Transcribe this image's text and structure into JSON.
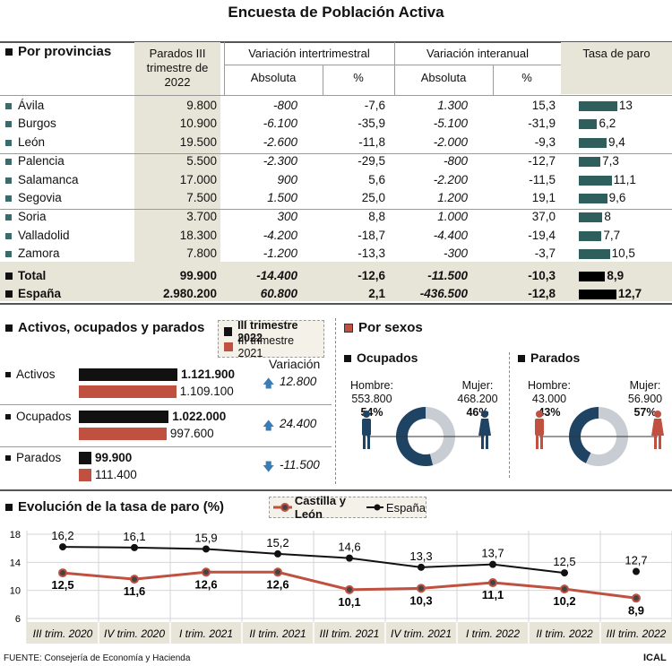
{
  "title": "Encuesta de Población Activa",
  "provincias": {
    "heading": "Por provincias",
    "headers": {
      "parados": "Parados III trimestre de 2022",
      "var_intertrimestral": "Variación intertrimestral",
      "var_interanual": "Variación interanual",
      "absoluta": "Absoluta",
      "pct": "%",
      "tasa": "Tasa de paro"
    },
    "rows": [
      {
        "name": "Ávila",
        "parados": "9.800",
        "inter_abs": "-800",
        "inter_pct": "-7,6",
        "anual_abs": "1.300",
        "anual_pct": "15,3",
        "tasa": 13,
        "tasa_label": "13"
      },
      {
        "name": "Burgos",
        "parados": "10.900",
        "inter_abs": "-6.100",
        "inter_pct": "-35,9",
        "anual_abs": "-5.100",
        "anual_pct": "-31,9",
        "tasa": 6.2,
        "tasa_label": "6,2"
      },
      {
        "name": "León",
        "parados": "19.500",
        "inter_abs": "-2.600",
        "inter_pct": "-11,8",
        "anual_abs": "-2.000",
        "anual_pct": "-9,3",
        "tasa": 9.4,
        "tasa_label": "9,4"
      },
      {
        "name": "Palencia",
        "parados": "5.500",
        "inter_abs": "-2.300",
        "inter_pct": "-29,5",
        "anual_abs": "-800",
        "anual_pct": "-12,7",
        "tasa": 7.3,
        "tasa_label": "7,3"
      },
      {
        "name": "Salamanca",
        "parados": "17.000",
        "inter_abs": "900",
        "inter_pct": "5,6",
        "anual_abs": "-2.200",
        "anual_pct": "-11,5",
        "tasa": 11.1,
        "tasa_label": "11,1"
      },
      {
        "name": "Segovia",
        "parados": "7.500",
        "inter_abs": "1.500",
        "inter_pct": "25,0",
        "anual_abs": "1.200",
        "anual_pct": "19,1",
        "tasa": 9.6,
        "tasa_label": "9,6"
      },
      {
        "name": "Soria",
        "parados": "3.700",
        "inter_abs": "300",
        "inter_pct": "8,8",
        "anual_abs": "1.000",
        "anual_pct": "37,0",
        "tasa": 8,
        "tasa_label": "8"
      },
      {
        "name": "Valladolid",
        "parados": "18.300",
        "inter_abs": "-4.200",
        "inter_pct": "-18,7",
        "anual_abs": "-4.400",
        "anual_pct": "-19,4",
        "tasa": 7.7,
        "tasa_label": "7,7"
      },
      {
        "name": "Zamora",
        "parados": "7.800",
        "inter_abs": "-1.200",
        "inter_pct": "-13,3",
        "anual_abs": "-300",
        "anual_pct": "-3,7",
        "tasa": 10.5,
        "tasa_label": "10,5"
      },
      {
        "name": "Total",
        "parados": "99.900",
        "inter_abs": "-14.400",
        "inter_pct": "-12,6",
        "anual_abs": "-11.500",
        "anual_pct": "-10,3",
        "tasa": 8.9,
        "tasa_label": "8,9"
      },
      {
        "name": "España",
        "parados": "2.980.200",
        "inter_abs": "60.800",
        "inter_pct": "2,1",
        "anual_abs": "-436.500",
        "anual_pct": "-12,8",
        "tasa": 12.7,
        "tasa_label": "12,7"
      }
    ]
  },
  "activos": {
    "heading": "Activos, ocupados y parados",
    "legend": [
      "III trimestre 2022",
      "III trimestre 2021"
    ],
    "variacion_label": "Variación",
    "rows": [
      {
        "label": "Activos",
        "v2022": 1121900,
        "v2022_label": "1.121.900",
        "v2021": 1109100,
        "v2021_label": "1.109.100",
        "variacion": "12.800",
        "direction": "up"
      },
      {
        "label": "Ocupados",
        "v2022": 1022000,
        "v2022_label": "1.022.000",
        "v2021": 997600,
        "v2021_label": "997.600",
        "variacion": "24.400",
        "direction": "up"
      },
      {
        "label": "Parados",
        "v2022": 99900,
        "v2022_label": "99.900",
        "v2021": 111400,
        "v2021_label": "111.400",
        "variacion": "-11.500",
        "direction": "down"
      }
    ]
  },
  "sexos": {
    "heading": "Por sexos",
    "ocupados": {
      "title": "Ocupados",
      "hombre_label": "Hombre:",
      "hombre_value": "553.800",
      "hombre_pct": "54%",
      "mujer_label": "Mujer:",
      "mujer_value": "468.200",
      "mujer_pct": "46%",
      "hombre_share": 54
    },
    "parados": {
      "title": "Parados",
      "hombre_label": "Hombre:",
      "hombre_value": "43.000",
      "hombre_pct": "43%",
      "mujer_label": "Mujer:",
      "mujer_value": "56.900",
      "mujer_pct": "57%",
      "hombre_share": 43
    }
  },
  "evolucion": {
    "heading": "Evolución de la tasa de paro (%)",
    "legend": [
      "Castilla y León",
      "España"
    ]
  },
  "chart_data": {
    "type": "line",
    "title": "Evolución de la tasa de paro (%)",
    "categories": [
      "III trim. 2020",
      "IV trim. 2020",
      "I trim. 2021",
      "II trim. 2021",
      "III trim. 2021",
      "IV trim. 2021",
      "I trim. 2022",
      "II trim. 2022",
      "III trim. 2022"
    ],
    "series": [
      {
        "name": "Castilla y León",
        "values": [
          12.5,
          11.6,
          12.6,
          12.6,
          10.1,
          10.3,
          11.1,
          10.2,
          8.9
        ],
        "labels": [
          "12,5",
          "11,6",
          "12,6",
          "12,6",
          "10,1",
          "10,3",
          "11,1",
          "10,2",
          "8,9"
        ],
        "color": "#b84a3a"
      },
      {
        "name": "España",
        "values": [
          16.2,
          16.1,
          15.9,
          15.2,
          14.6,
          13.3,
          13.7,
          12.5,
          12.7
        ],
        "labels": [
          "16,2",
          "16,1",
          "15,9",
          "15,2",
          "14,6",
          "13,3",
          "13,7",
          "12,5",
          "12,7"
        ],
        "color": "#111111"
      }
    ],
    "yticks": [
      "18",
      "14",
      "10",
      "6"
    ],
    "ylim": [
      6,
      18
    ],
    "grid": true
  },
  "footer": {
    "source": "FUENTE: Consejería de Economía y Hacienda",
    "credit": "ICAL"
  },
  "colors": {
    "teal": "#2f5f5c",
    "red": "#c0503f",
    "navy": "#1f4463",
    "lightgray": "#c8cdd3",
    "shade": "#e7e4d8"
  }
}
